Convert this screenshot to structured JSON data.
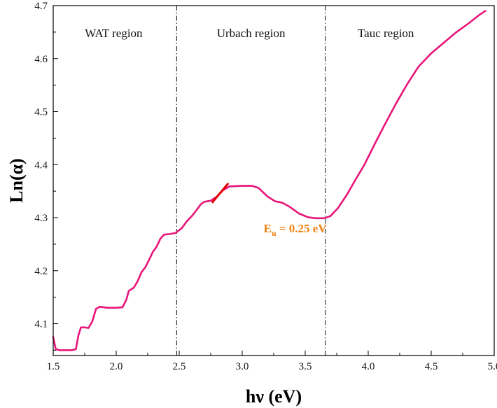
{
  "chart_data": {
    "type": "line",
    "xlabel": "hν (eV)",
    "ylabel": "Ln(α)",
    "xlim": [
      1.5,
      5.0
    ],
    "ylim": [
      4.04,
      4.7
    ],
    "x_ticks": [
      "1.5",
      "2.0",
      "2.5",
      "3.0",
      "3.5",
      "4.0",
      "4.5",
      "5.0"
    ],
    "y_ticks": [
      "4.1",
      "4.2",
      "4.3",
      "4.4",
      "4.5",
      "4.6",
      "4.7"
    ],
    "grid": false,
    "legend": "none",
    "series": [
      {
        "color": "#e8157a",
        "points": [
          [
            1.5,
            4.075
          ],
          [
            1.52,
            4.052
          ],
          [
            1.55,
            4.05
          ],
          [
            1.6,
            4.05
          ],
          [
            1.65,
            4.05
          ],
          [
            1.68,
            4.052
          ],
          [
            1.7,
            4.078
          ],
          [
            1.72,
            4.093
          ],
          [
            1.75,
            4.093
          ],
          [
            1.78,
            4.092
          ],
          [
            1.81,
            4.104
          ],
          [
            1.84,
            4.128
          ],
          [
            1.87,
            4.132
          ],
          [
            1.93,
            4.13
          ],
          [
            2.0,
            4.13
          ],
          [
            2.05,
            4.131
          ],
          [
            2.08,
            4.145
          ],
          [
            2.1,
            4.162
          ],
          [
            2.14,
            4.168
          ],
          [
            2.17,
            4.18
          ],
          [
            2.2,
            4.197
          ],
          [
            2.23,
            4.206
          ],
          [
            2.26,
            4.22
          ],
          [
            2.29,
            4.235
          ],
          [
            2.32,
            4.245
          ],
          [
            2.35,
            4.26
          ],
          [
            2.38,
            4.268
          ],
          [
            2.42,
            4.269
          ],
          [
            2.47,
            4.271
          ],
          [
            2.52,
            4.28
          ],
          [
            2.56,
            4.293
          ],
          [
            2.6,
            4.303
          ],
          [
            2.64,
            4.315
          ],
          [
            2.67,
            4.325
          ],
          [
            2.7,
            4.33
          ],
          [
            2.75,
            4.332
          ],
          [
            2.8,
            4.34
          ],
          [
            2.85,
            4.352
          ],
          [
            2.9,
            4.359
          ],
          [
            3.0,
            4.36
          ],
          [
            3.08,
            4.36
          ],
          [
            3.13,
            4.356
          ],
          [
            3.2,
            4.34
          ],
          [
            3.26,
            4.331
          ],
          [
            3.32,
            4.328
          ],
          [
            3.38,
            4.32
          ],
          [
            3.45,
            4.308
          ],
          [
            3.52,
            4.301
          ],
          [
            3.58,
            4.299
          ],
          [
            3.65,
            4.299
          ],
          [
            3.7,
            4.303
          ],
          [
            3.76,
            4.318
          ],
          [
            3.83,
            4.343
          ],
          [
            3.9,
            4.372
          ],
          [
            3.97,
            4.4
          ],
          [
            4.05,
            4.438
          ],
          [
            4.13,
            4.475
          ],
          [
            4.22,
            4.515
          ],
          [
            4.31,
            4.552
          ],
          [
            4.4,
            4.585
          ],
          [
            4.5,
            4.61
          ],
          [
            4.6,
            4.63
          ],
          [
            4.7,
            4.65
          ],
          [
            4.8,
            4.667
          ],
          [
            4.88,
            4.682
          ],
          [
            4.93,
            4.69
          ]
        ]
      }
    ],
    "fit_line": {
      "color": "#e00000",
      "points": [
        [
          2.76,
          4.328
        ],
        [
          2.89,
          4.365
        ]
      ]
    },
    "vlines": [
      2.48,
      3.66
    ],
    "regions": [
      {
        "label": "WAT region",
        "x": 1.98
      },
      {
        "label": "Urbach region",
        "x": 3.07
      },
      {
        "label": "Tauc region",
        "x": 4.14
      }
    ],
    "annotation": {
      "main": "E",
      "sub": "u",
      "rest": " = 0.25 eV",
      "color": "#f08010",
      "x": 3.17,
      "y": 4.28
    }
  }
}
